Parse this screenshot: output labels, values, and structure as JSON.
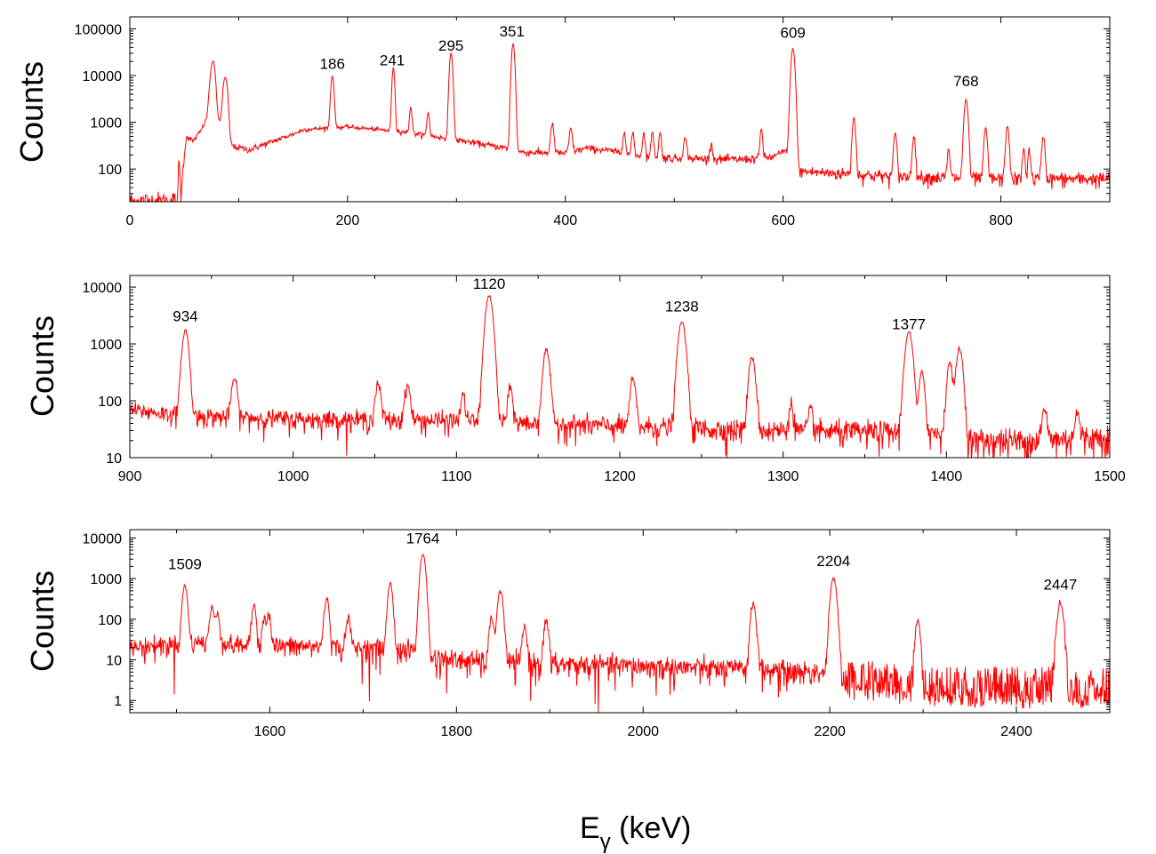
{
  "figure": {
    "xlabel_main": "E",
    "xlabel_sub": "γ",
    "xlabel_unit": " (keV)"
  },
  "chart_data": [
    {
      "type": "line",
      "ylabel": "Counts",
      "xlabel": "",
      "xlim": [
        0,
        900
      ],
      "ylim": [
        20,
        180000
      ],
      "yscale": "log",
      "xticks": [
        0,
        200,
        400,
        600,
        800
      ],
      "yticks": [
        100,
        1000,
        10000,
        100000
      ],
      "line_color": "#ff0000",
      "background": [
        [
          0,
          20
        ],
        [
          44,
          20
        ],
        [
          45,
          180
        ],
        [
          47,
          30
        ],
        [
          50,
          200
        ],
        [
          52,
          500
        ],
        [
          58,
          400
        ],
        [
          65,
          650
        ],
        [
          70,
          1100
        ],
        [
          78,
          1600
        ],
        [
          84,
          900
        ],
        [
          90,
          500
        ],
        [
          95,
          300
        ],
        [
          110,
          260
        ],
        [
          150,
          560
        ],
        [
          160,
          700
        ],
        [
          200,
          800
        ],
        [
          250,
          630
        ],
        [
          300,
          420
        ],
        [
          350,
          270
        ],
        [
          360,
          230
        ],
        [
          400,
          220
        ],
        [
          420,
          280
        ],
        [
          440,
          250
        ],
        [
          460,
          200
        ],
        [
          500,
          170
        ],
        [
          560,
          160
        ],
        [
          590,
          180
        ],
        [
          605,
          260
        ],
        [
          613,
          90
        ],
        [
          700,
          70
        ],
        [
          800,
          62
        ],
        [
          900,
          62
        ]
      ],
      "peaks": [
        [
          75,
          9000,
          1.6
        ],
        [
          77,
          14000,
          1.4
        ],
        [
          87,
          7000,
          1.4
        ],
        [
          89,
          4000,
          1.2
        ],
        [
          186,
          9000,
          1.2
        ],
        [
          242,
          14000,
          1.0
        ],
        [
          258,
          1500,
          1.0
        ],
        [
          274,
          1100,
          1.0
        ],
        [
          295,
          30000,
          1.2
        ],
        [
          352,
          48000,
          1.2
        ],
        [
          388,
          700,
          1.2
        ],
        [
          405,
          500,
          1.2
        ],
        [
          454,
          450,
          1.0
        ],
        [
          462,
          420,
          1.0
        ],
        [
          472,
          400,
          1.0
        ],
        [
          480,
          450,
          1.0
        ],
        [
          487,
          420,
          1.0
        ],
        [
          510,
          280,
          1.4
        ],
        [
          534,
          200,
          1.0
        ],
        [
          580,
          550,
          1.0
        ],
        [
          609,
          38000,
          1.4
        ],
        [
          665,
          1200,
          1.2
        ],
        [
          703,
          500,
          1.2
        ],
        [
          720,
          420,
          1.2
        ],
        [
          752,
          200,
          1.0
        ],
        [
          768,
          3000,
          1.4
        ],
        [
          786,
          700,
          1.2
        ],
        [
          806,
          800,
          1.2
        ],
        [
          821,
          200,
          1.0
        ],
        [
          826,
          200,
          1.0
        ],
        [
          839,
          450,
          1.2
        ]
      ],
      "annotations": [
        {
          "label": "186",
          "x": 186,
          "y": 14000
        },
        {
          "label": "241",
          "x": 241,
          "y": 16500
        },
        {
          "label": "295",
          "x": 295,
          "y": 34000
        },
        {
          "label": "351",
          "x": 351,
          "y": 69000
        },
        {
          "label": "609",
          "x": 609,
          "y": 64000
        },
        {
          "label": "768",
          "x": 768,
          "y": 5900
        }
      ]
    },
    {
      "type": "line",
      "ylabel": "Counts",
      "xlabel": "",
      "xlim": [
        900,
        1500
      ],
      "ylim": [
        10,
        16000
      ],
      "yscale": "log",
      "xticks": [
        900,
        1000,
        1100,
        1200,
        1300,
        1400,
        1500
      ],
      "yticks": [
        10,
        100,
        1000,
        10000
      ],
      "line_color": "#ff0000",
      "background": [
        [
          900,
          70
        ],
        [
          935,
          55
        ],
        [
          1000,
          48
        ],
        [
          1100,
          45
        ],
        [
          1200,
          36
        ],
        [
          1300,
          30
        ],
        [
          1400,
          27
        ],
        [
          1410,
          20
        ],
        [
          1450,
          20
        ],
        [
          1500,
          24
        ]
      ],
      "peaks": [
        [
          934,
          1700,
          1.6
        ],
        [
          964,
          200,
          1.4
        ],
        [
          1052,
          150,
          1.4
        ],
        [
          1070,
          140,
          1.4
        ],
        [
          1104,
          80,
          1.2
        ],
        [
          1120,
          7000,
          1.8
        ],
        [
          1133,
          130,
          1.2
        ],
        [
          1155,
          750,
          1.6
        ],
        [
          1208,
          200,
          1.4
        ],
        [
          1238,
          2400,
          1.8
        ],
        [
          1281,
          550,
          1.6
        ],
        [
          1305,
          60,
          1.2
        ],
        [
          1317,
          40,
          1.2
        ],
        [
          1377,
          1600,
          1.8
        ],
        [
          1385,
          280,
          1.4
        ],
        [
          1402,
          450,
          1.4
        ],
        [
          1408,
          820,
          1.6
        ],
        [
          1460,
          45,
          1.4
        ],
        [
          1480,
          40,
          1.2
        ]
      ],
      "annotations": [
        {
          "label": "934",
          "x": 934,
          "y": 2500
        },
        {
          "label": "1120",
          "x": 1120,
          "y": 9300
        },
        {
          "label": "1238",
          "x": 1238,
          "y": 3750
        },
        {
          "label": "1377",
          "x": 1377,
          "y": 1820
        }
      ]
    },
    {
      "type": "line",
      "ylabel": "Counts",
      "xlabel": "",
      "xlim": [
        1450,
        2500
      ],
      "ylim": [
        0.5,
        16000
      ],
      "yscale": "log",
      "xticks": [
        1600,
        1800,
        2000,
        2200,
        2400
      ],
      "yticks": [
        1,
        10,
        100,
        1000,
        10000
      ],
      "line_color": "#ff0000",
      "background": [
        [
          1450,
          20
        ],
        [
          1520,
          28
        ],
        [
          1560,
          24
        ],
        [
          1700,
          20
        ],
        [
          1760,
          17
        ],
        [
          1770,
          12
        ],
        [
          1800,
          10
        ],
        [
          1900,
          8
        ],
        [
          2000,
          7
        ],
        [
          2100,
          6
        ],
        [
          2200,
          5
        ],
        [
          2210,
          3
        ],
        [
          2300,
          2
        ],
        [
          2500,
          1.5
        ]
      ],
      "peaks": [
        [
          1509,
          650,
          2.0
        ],
        [
          1538,
          160,
          2.0
        ],
        [
          1544,
          120,
          1.8
        ],
        [
          1583,
          200,
          1.8
        ],
        [
          1594,
          100,
          1.6
        ],
        [
          1599,
          110,
          1.6
        ],
        [
          1661,
          300,
          2.0
        ],
        [
          1684,
          90,
          1.8
        ],
        [
          1729,
          730,
          2.0
        ],
        [
          1764,
          4000,
          2.2
        ],
        [
          1838,
          100,
          2.0
        ],
        [
          1847,
          500,
          2.2
        ],
        [
          1873,
          60,
          1.8
        ],
        [
          1896,
          80,
          2.0
        ],
        [
          2118,
          240,
          2.2
        ],
        [
          2204,
          1000,
          2.4
        ],
        [
          2294,
          90,
          2.0
        ],
        [
          2447,
          250,
          2.6
        ]
      ],
      "annotations": [
        {
          "label": "1509",
          "x": 1509,
          "y": 1700
        },
        {
          "label": "1764",
          "x": 1764,
          "y": 7300
        },
        {
          "label": "2204",
          "x": 2204,
          "y": 2050
        },
        {
          "label": "2447",
          "x": 2447,
          "y": 530
        }
      ]
    }
  ]
}
